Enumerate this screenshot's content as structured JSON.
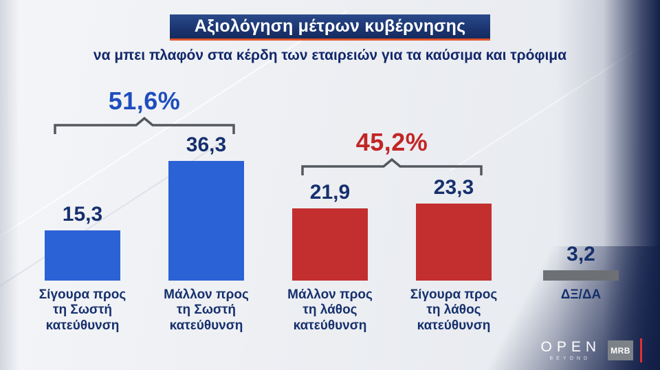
{
  "header": {
    "title": "Αξιολόγηση μέτρων κυβέρνησης",
    "subtitle": "να μπει πλαφόν στα κέρδη των εταιρειών για τα καύσιμα και τρόφιμα"
  },
  "chart_data": {
    "type": "bar",
    "title": "Αξιολόγηση μέτρων κυβέρνησης",
    "subtitle": "να μπει πλαφόν στα κέρδη των εταιρειών για τα καύσιμα και τρόφιμα",
    "categories": [
      "Σίγουρα προς\nτη Σωστή\nκατεύθυνση",
      "Μάλλον προς\nτη Σωστή\nκατεύθυνση",
      "Μάλλον προς\nτη λάθος\nκατεύθυνση",
      "Σίγουρα προς\nτη λάθος\nκατεύθυνση",
      "ΔΞ/ΔΑ"
    ],
    "values": [
      15.3,
      36.3,
      21.9,
      23.3,
      3.2
    ],
    "value_labels": [
      "15,3",
      "36,3",
      "21,9",
      "23,3",
      "3,2"
    ],
    "bar_colors": [
      "#2b62d6",
      "#2b62d6",
      "#c32f2f",
      "#c32f2f",
      "#6d7074"
    ],
    "groups": [
      {
        "label": "51,6%",
        "color": "#1f4dbe",
        "covers": [
          "Σίγουρα προς τη Σωστή κατεύθυνση",
          "Μάλλον προς τη Σωστή κατεύθυνση"
        ]
      },
      {
        "label": "45,2%",
        "color": "#c22525",
        "covers": [
          "Μάλλον προς τη λάθος κατεύθυνση",
          "Σίγουρα προς τη λάθος κατεύθυνση"
        ]
      }
    ],
    "ylim": [
      0,
      40
    ],
    "grid": false,
    "legend": false
  },
  "branding": {
    "open_logo": "OPEN",
    "open_tagline": "BEYOND",
    "mrb_logo": "MRB"
  },
  "colors": {
    "banner_bg": "#1c3672",
    "banner_underline": "#e0532a",
    "subtitle_text": "#12276b",
    "value_text": "#16306d",
    "bracket": "#54585e",
    "positive_blue": "#2b62d6",
    "negative_red": "#c32f2f",
    "neutral_gray": "#6d7074",
    "edge_band_navy": "#12204a"
  }
}
